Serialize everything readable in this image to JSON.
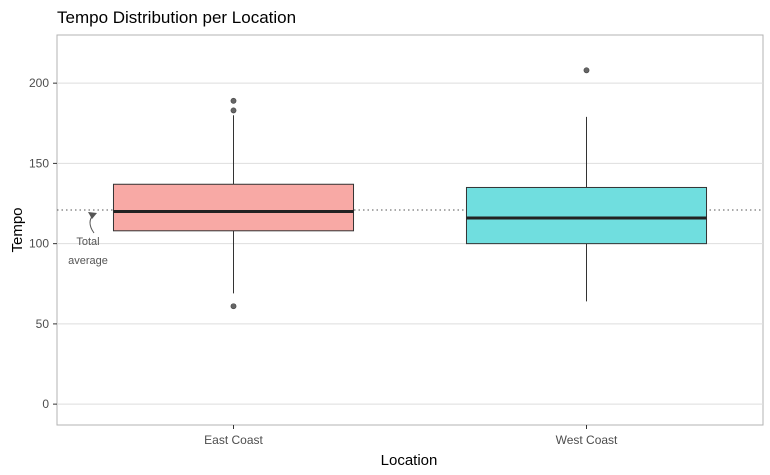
{
  "chart_data": {
    "type": "boxplot",
    "title": "Tempo Distribution per Location",
    "xlabel": "Location",
    "ylabel": "Tempo",
    "categories": [
      "East Coast",
      "West Coast"
    ],
    "ylim": [
      -13,
      230
    ],
    "yticks": [
      0,
      50,
      100,
      150,
      200
    ],
    "grid": true,
    "legend": "none",
    "boxes": [
      {
        "category": "East Coast",
        "q1": 108,
        "median": 120,
        "q3": 137,
        "whisker_low": 69,
        "whisker_high": 180,
        "outliers": [
          189,
          183,
          61
        ],
        "color": "#F8A9A5"
      },
      {
        "category": "West Coast",
        "q1": 100,
        "median": 116,
        "q3": 135,
        "whisker_low": 64,
        "whisker_high": 179,
        "outliers": [
          208
        ],
        "color": "#70DEDF"
      }
    ],
    "reference_line": {
      "value": 121,
      "style": "dotted",
      "label": "Total average"
    },
    "annotation_lines": [
      "Total",
      "average"
    ]
  }
}
